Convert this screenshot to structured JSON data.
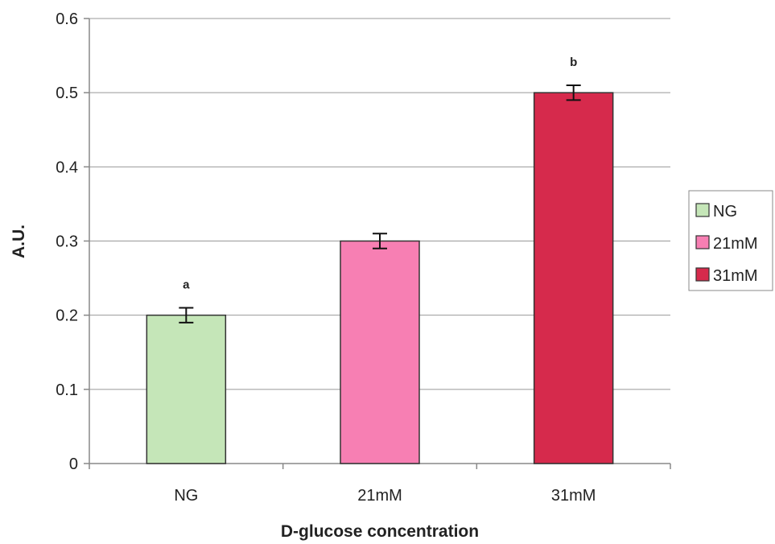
{
  "chart_data": {
    "type": "bar",
    "title": "",
    "xlabel": "D-glucose concentration",
    "ylabel": "A.U.",
    "categories": [
      "NG",
      "21mM",
      "31mM"
    ],
    "values": [
      0.2,
      0.3,
      0.5
    ],
    "errors": [
      0.01,
      0.01,
      0.01
    ],
    "significance_labels": [
      "a",
      "",
      "b"
    ],
    "colors": [
      "#c5e6b8",
      "#f77fb3",
      "#d62a4c"
    ],
    "ylim": [
      0,
      0.6
    ],
    "yticks": [
      "0",
      "0.1",
      "0.2",
      "0.3",
      "0.4",
      "0.5",
      "0.6"
    ],
    "grid": true,
    "legend": {
      "position": "right",
      "entries": [
        "NG",
        "21mM",
        "31mM"
      ]
    }
  }
}
